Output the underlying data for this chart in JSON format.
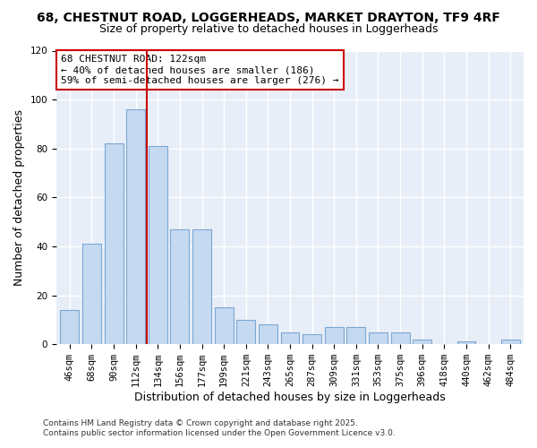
{
  "title": "68, CHESTNUT ROAD, LOGGERHEADS, MARKET DRAYTON, TF9 4RF",
  "subtitle": "Size of property relative to detached houses in Loggerheads",
  "xlabel": "Distribution of detached houses by size in Loggerheads",
  "ylabel": "Number of detached properties",
  "bar_labels": [
    "46sqm",
    "68sqm",
    "90sqm",
    "112sqm",
    "134sqm",
    "156sqm",
    "177sqm",
    "199sqm",
    "221sqm",
    "243sqm",
    "265sqm",
    "287sqm",
    "309sqm",
    "331sqm",
    "353sqm",
    "375sqm",
    "396sqm",
    "418sqm",
    "440sqm",
    "462sqm",
    "484sqm"
  ],
  "bar_values": [
    14,
    41,
    82,
    96,
    81,
    47,
    47,
    15,
    10,
    8,
    5,
    4,
    7,
    7,
    5,
    5,
    2,
    0,
    1,
    0,
    2
  ],
  "ylim": [
    0,
    120
  ],
  "yticks": [
    0,
    20,
    40,
    60,
    80,
    100,
    120
  ],
  "bar_color": "#c5d9f1",
  "bar_edge_color": "#7ba7d4",
  "vline_x": 3.5,
  "vline_color": "#cc0000",
  "annotation_title": "68 CHESTNUT ROAD: 122sqm",
  "annotation_line1": "← 40% of detached houses are smaller (186)",
  "annotation_line2": "59% of semi-detached houses are larger (276) →",
  "annotation_box_color": "#ffffff",
  "annotation_box_edge": "#cc0000",
  "footer1": "Contains HM Land Registry data © Crown copyright and database right 2025.",
  "footer2": "Contains public sector information licensed under the Open Government Licence v3.0.",
  "bg_color": "#ffffff",
  "plot_bg_color": "#e8eef8",
  "grid_color": "#ffffff",
  "title_fontsize": 10,
  "subtitle_fontsize": 9,
  "axis_label_fontsize": 9,
  "tick_fontsize": 7.5,
  "annotation_fontsize": 8,
  "footer_fontsize": 6.5
}
